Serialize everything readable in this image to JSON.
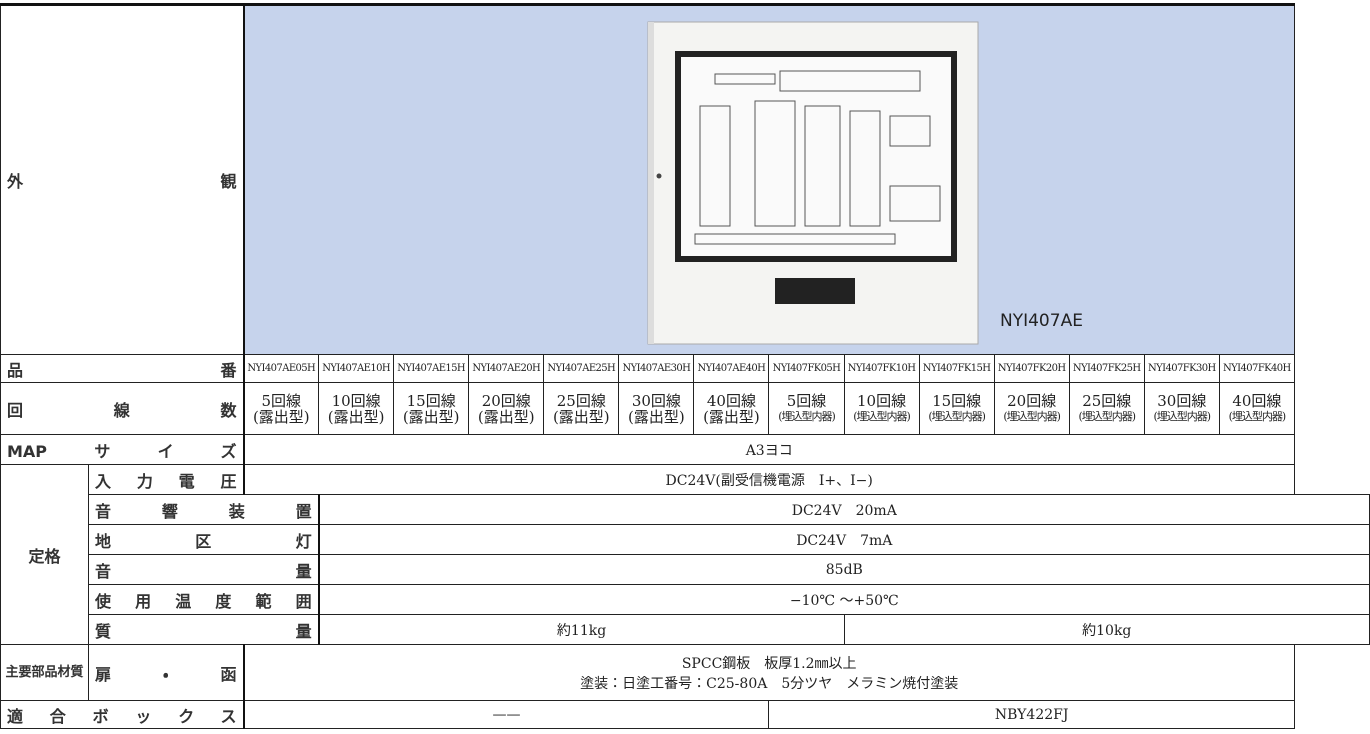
{
  "header": {
    "appearance_label": "外観",
    "image_caption": "NYI407AE"
  },
  "labels": {
    "model": "品番",
    "circuits": "回線数",
    "map_size": "MAPサイズ",
    "rating": "定格",
    "input_voltage": "入力電圧",
    "sound_device": "音響装置",
    "area_light": "地区灯",
    "volume": "音量",
    "temperature": "使用温度範囲",
    "mass": "質量",
    "material_group": "主要部品材質",
    "door_box": "扉・函",
    "box": "適合ボックス"
  },
  "models": [
    "NYI407AE05H",
    "NYI407AE10H",
    "NYI407AE15H",
    "NYI407AE20H",
    "NYI407AE25H",
    "NYI407AE30H",
    "NYI407AE40H",
    "NYI407FK05H",
    "NYI407FK10H",
    "NYI407FK15H",
    "NYI407FK20H",
    "NYI407FK25H",
    "NYI407FK30H",
    "NYI407FK40H"
  ],
  "circuits": [
    {
      "count": "5回線",
      "type": "(露出型)"
    },
    {
      "count": "10回線",
      "type": "(露出型)"
    },
    {
      "count": "15回線",
      "type": "(露出型)"
    },
    {
      "count": "20回線",
      "type": "(露出型)"
    },
    {
      "count": "25回線",
      "type": "(露出型)"
    },
    {
      "count": "30回線",
      "type": "(露出型)"
    },
    {
      "count": "40回線",
      "type": "(露出型)"
    },
    {
      "count": "5回線",
      "type": "(埋込型内器)"
    },
    {
      "count": "10回線",
      "type": "(埋込型内器)"
    },
    {
      "count": "15回線",
      "type": "(埋込型内器)"
    },
    {
      "count": "20回線",
      "type": "(埋込型内器)"
    },
    {
      "count": "25回線",
      "type": "(埋込型内器)"
    },
    {
      "count": "30回線",
      "type": "(埋込型内器)"
    },
    {
      "count": "40回線",
      "type": "(埋込型内器)"
    }
  ],
  "values": {
    "map_size": "A3ヨコ",
    "input_voltage": "DC24V(副受信機電源　I+、I−)",
    "sound_device": "DC24V　20mA",
    "area_light": "DC24V　7mA",
    "volume": "85dB",
    "temperature": "−10℃ ～+50℃",
    "mass": [
      "約11kg",
      "約10kg"
    ],
    "door_box": [
      "SPCC鋼板　板厚1.2㎜以上",
      "塗装：日塗工番号：C25-80A　5分ツヤ　メラミン焼付塗装"
    ],
    "box": [
      "——",
      "NBY422FJ"
    ]
  }
}
